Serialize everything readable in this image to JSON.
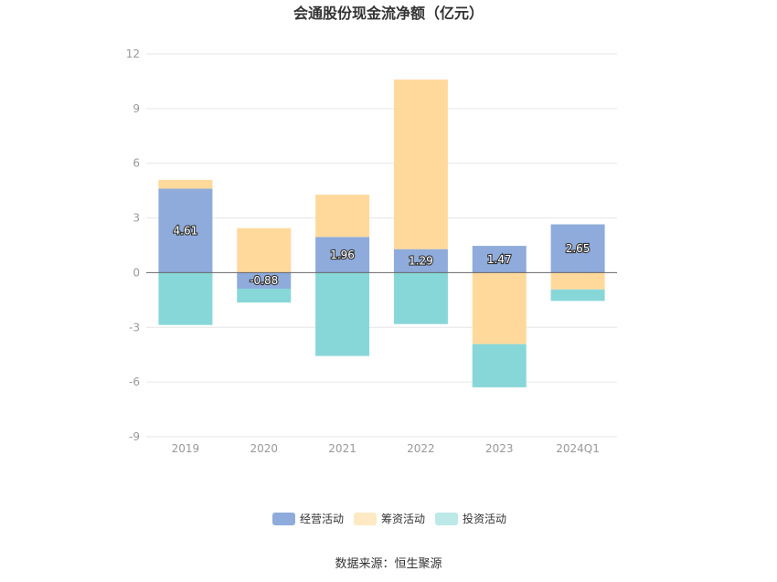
{
  "chart_data": {
    "type": "bar",
    "stacked": true,
    "title": "会通股份现金流净额（亿元）",
    "categories": [
      "2019",
      "2020",
      "2021",
      "2022",
      "2023",
      "2024Q1"
    ],
    "series": [
      {
        "name": "经营活动",
        "color": "#8eabdb",
        "values": [
          4.61,
          -0.88,
          1.96,
          1.29,
          1.47,
          2.65
        ],
        "show_labels": true
      },
      {
        "name": "筹资活动",
        "color": "#ffd99b",
        "values": [
          0.48,
          2.44,
          2.32,
          9.3,
          -3.92,
          -0.92
        ],
        "show_labels": false
      },
      {
        "name": "投资活动",
        "color": "#88d7d8",
        "values": [
          -2.87,
          -0.76,
          -4.57,
          -2.82,
          -2.37,
          -0.63
        ],
        "show_labels": false
      }
    ],
    "legend_colors": [
      "#8eabdb",
      "#fde9c3",
      "#bde8e8"
    ],
    "ylim": [
      -9,
      12
    ],
    "yticks": [
      12,
      9,
      6,
      3,
      0,
      -3,
      -6,
      -9
    ],
    "xlabel": "",
    "ylabel": "",
    "grid": true,
    "legend_position": "bottom"
  },
  "source": "数据来源：恒生聚源"
}
